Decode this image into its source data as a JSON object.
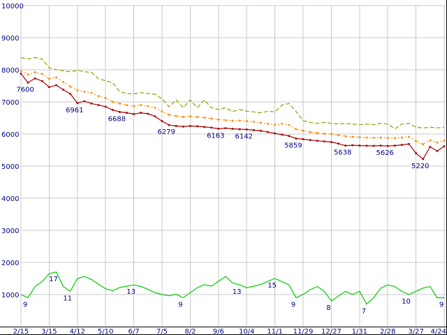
{
  "chart_data": {
    "type": "line",
    "title": "",
    "xlabel": "",
    "ylabel": "",
    "ylim": [
      0,
      10000
    ],
    "grid": true,
    "legend": "none",
    "background": "#ffffff",
    "grid_color": "#c9c9c9",
    "axis_color": "#000000",
    "label_color": "#000080",
    "x_tick_labels": [
      "2/15",
      "3/15",
      "4/12",
      "5/10",
      "6/7",
      "7/5",
      "8/2",
      "9/6",
      "10/4",
      "11/1",
      "11/29",
      "12/27",
      "1/31",
      "2/28",
      "3/27",
      "4/24"
    ],
    "y_tick_labels": [
      "10000",
      "9000",
      "8000",
      "7000",
      "6000",
      "5000",
      "4000",
      "3000",
      "2000",
      "1000"
    ],
    "series": [
      {
        "key": "olive",
        "name": "upper-dashed-line",
        "color": "#999900",
        "dash": "6,3",
        "markers": "none",
        "values": [
          8380,
          8340,
          8380,
          8340,
          8060,
          8000,
          7970,
          7940,
          7980,
          7940,
          7920,
          7720,
          7660,
          7600,
          7320,
          7260,
          7250,
          7290,
          7260,
          7240,
          7100,
          6850,
          7060,
          6820,
          7060,
          6820,
          7060,
          6820,
          6760,
          6820,
          6700,
          6760,
          6710,
          6690,
          6660,
          6710,
          6690,
          6900,
          6950,
          6700,
          6420,
          6360,
          6330,
          6360,
          6330,
          6310,
          6330,
          6310,
          6290,
          6310,
          6290,
          6330,
          6310,
          6160,
          6310,
          6330,
          6210,
          6190,
          6210,
          6190,
          6210
        ]
      },
      {
        "key": "orange",
        "name": "middle-dotted-line",
        "color": "#ff8c00",
        "dash": "2,3",
        "markers": "square",
        "values": [
          7960,
          7850,
          7920,
          7870,
          7720,
          7760,
          7620,
          7480,
          7360,
          7320,
          7280,
          7180,
          7120,
          7000,
          6950,
          6900,
          6870,
          6900,
          6870,
          6820,
          6700,
          6600,
          6560,
          6530,
          6550,
          6530,
          6510,
          6480,
          6450,
          6430,
          6410,
          6420,
          6400,
          6380,
          6350,
          6320,
          6290,
          6320,
          6280,
          6150,
          6100,
          6060,
          6030,
          6010,
          6000,
          5960,
          5930,
          5910,
          5900,
          5890,
          5880,
          5890,
          5880,
          5870,
          5890,
          5910,
          5780,
          5680,
          5800,
          5740,
          5790
        ]
      },
      {
        "key": "red",
        "name": "main-red-line",
        "color": "#aa0000",
        "dash": "none",
        "markers": "square",
        "values": [
          7880,
          7600,
          7730,
          7650,
          7460,
          7520,
          7380,
          7250,
          6961,
          7020,
          6950,
          6900,
          6850,
          6750,
          6688,
          6660,
          6620,
          6660,
          6630,
          6550,
          6400,
          6279,
          6250,
          6230,
          6250,
          6240,
          6220,
          6200,
          6163,
          6180,
          6160,
          6150,
          6142,
          6120,
          6100,
          6060,
          6020,
          5980,
          5940,
          5859,
          5840,
          5810,
          5790,
          5770,
          5750,
          5700,
          5638,
          5650,
          5640,
          5635,
          5630,
          5640,
          5626,
          5640,
          5660,
          5690,
          5400,
          5220,
          5600,
          5470,
          5620
        ]
      },
      {
        "key": "green",
        "name": "lower-green-line",
        "color": "#00cc00",
        "dash": "none",
        "markers": "none",
        "values": [
          1000,
          900,
          1250,
          1400,
          1650,
          1700,
          1250,
          1100,
          1500,
          1560,
          1470,
          1320,
          1180,
          1120,
          1220,
          1260,
          1300,
          1250,
          1160,
          1060,
          1000,
          960,
          1010,
          900,
          1060,
          1210,
          1310,
          1260,
          1410,
          1560,
          1360,
          1300,
          1210,
          1260,
          1310,
          1410,
          1500,
          1400,
          1300,
          900,
          1000,
          1150,
          1250,
          1100,
          800,
          950,
          1100,
          1000,
          1100,
          700,
          900,
          1200,
          1300,
          1250,
          1100,
          1000,
          1100,
          1200,
          1250,
          900,
          900
        ]
      }
    ],
    "point_labels": [
      {
        "s": "red",
        "i": 1,
        "t": "7600"
      },
      {
        "s": "red",
        "i": 8,
        "t": "6961"
      },
      {
        "s": "red",
        "i": 14,
        "t": "6688"
      },
      {
        "s": "red",
        "i": 21,
        "t": "6279"
      },
      {
        "s": "red",
        "i": 28,
        "t": "6163"
      },
      {
        "s": "red",
        "i": 32,
        "t": "6142"
      },
      {
        "s": "red",
        "i": 39,
        "t": "5859"
      },
      {
        "s": "red",
        "i": 46,
        "t": "5638"
      },
      {
        "s": "red",
        "i": 52,
        "t": "5626"
      },
      {
        "s": "red",
        "i": 57,
        "t": "5220"
      },
      {
        "s": "green",
        "i": 1,
        "t": "9"
      },
      {
        "s": "green",
        "i": 5,
        "t": "17"
      },
      {
        "s": "green",
        "i": 7,
        "t": "11"
      },
      {
        "s": "green",
        "i": 16,
        "t": "13"
      },
      {
        "s": "green",
        "i": 23,
        "t": "9"
      },
      {
        "s": "green",
        "i": 31,
        "t": "13"
      },
      {
        "s": "green",
        "i": 36,
        "t": "15"
      },
      {
        "s": "green",
        "i": 39,
        "t": "9"
      },
      {
        "s": "green",
        "i": 44,
        "t": "8"
      },
      {
        "s": "green",
        "i": 49,
        "t": "7"
      },
      {
        "s": "green",
        "i": 55,
        "t": "10"
      },
      {
        "s": "green",
        "i": 60,
        "t": "9"
      }
    ]
  }
}
